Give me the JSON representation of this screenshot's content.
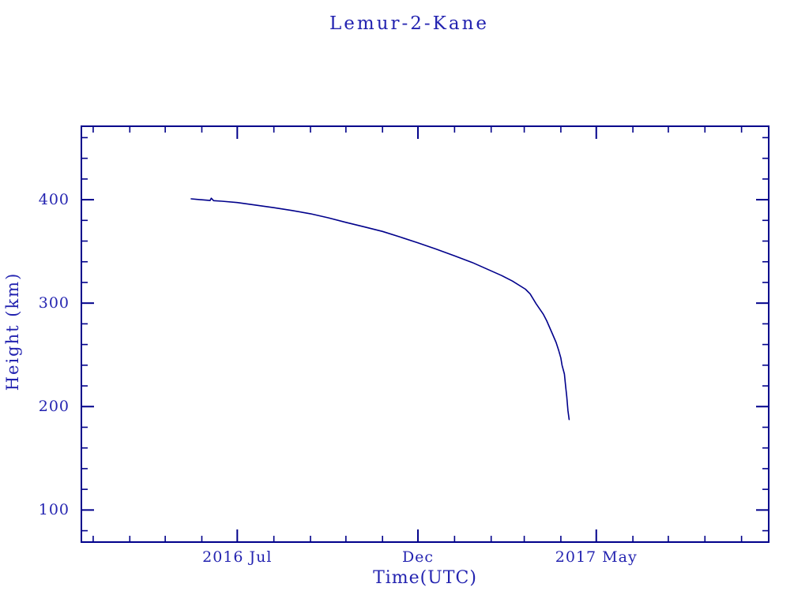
{
  "chart": {
    "title": "Lemur-2-Kane",
    "xlabel": "Time(UTC)",
    "ylabel": "Height (km)"
  },
  "chart_data": {
    "type": "line",
    "title": "Lemur-2-Kane",
    "xlabel": "Time(UTC)",
    "ylabel": "Height (km)",
    "grid": false,
    "legend": "none",
    "colors": {
      "text": "#2323B0",
      "frame": "#00008B",
      "line": "#00008B",
      "background": "#FFFFFF"
    },
    "x_range": [
      "2016-02-20",
      "2017-09-24"
    ],
    "y_range": [
      69,
      471
    ],
    "x_major_ticks": [
      {
        "date": "2016-07-01",
        "label": "2016 Jul"
      },
      {
        "date": "2016-12-01",
        "label": "Dec"
      },
      {
        "date": "2017-05-01",
        "label": "2017 May"
      }
    ],
    "x_minor_tick_unit": "month",
    "y_major_ticks": [
      {
        "value": 100,
        "label": "100"
      },
      {
        "value": 200,
        "label": "200"
      },
      {
        "value": 300,
        "label": "300"
      },
      {
        "value": 400,
        "label": "400"
      }
    ],
    "y_minor_tick_step": 20,
    "series": [
      {
        "name": "Height (km)",
        "points": [
          [
            "2016-05-23",
            400.8
          ],
          [
            "2016-05-28",
            400.3
          ],
          [
            "2016-06-04",
            399.6
          ],
          [
            "2016-06-08",
            399.2
          ],
          [
            "2016-06-09",
            401.4
          ],
          [
            "2016-06-11",
            399.1
          ],
          [
            "2016-06-18",
            398.5
          ],
          [
            "2016-07-01",
            397.2
          ],
          [
            "2016-07-16",
            394.9
          ],
          [
            "2016-08-01",
            392.3
          ],
          [
            "2016-08-16",
            389.6
          ],
          [
            "2016-09-01",
            386.4
          ],
          [
            "2016-09-16",
            382.5
          ],
          [
            "2016-10-01",
            378.1
          ],
          [
            "2016-10-16",
            373.9
          ],
          [
            "2016-11-01",
            369.3
          ],
          [
            "2016-11-16",
            363.9
          ],
          [
            "2016-12-01",
            358.3
          ],
          [
            "2016-12-16",
            352.4
          ],
          [
            "2017-01-01",
            345.7
          ],
          [
            "2017-01-16",
            339.3
          ],
          [
            "2017-02-01",
            331.2
          ],
          [
            "2017-02-10",
            326.6
          ],
          [
            "2017-02-19",
            321.3
          ],
          [
            "2017-03-02",
            313.5
          ],
          [
            "2017-03-06",
            309.0
          ],
          [
            "2017-03-11",
            299.5
          ],
          [
            "2017-03-17",
            289.5
          ],
          [
            "2017-03-20",
            283.0
          ],
          [
            "2017-03-25",
            270.0
          ],
          [
            "2017-03-28",
            262.0
          ],
          [
            "2017-03-30",
            255.0
          ],
          [
            "2017-04-01",
            247.0
          ],
          [
            "2017-04-02",
            240.0
          ],
          [
            "2017-04-04",
            231.5
          ],
          [
            "2017-04-05",
            220.0
          ],
          [
            "2017-04-06",
            209.5
          ],
          [
            "2017-04-07",
            196.0
          ],
          [
            "2017-04-08",
            187.5
          ]
        ]
      }
    ]
  }
}
